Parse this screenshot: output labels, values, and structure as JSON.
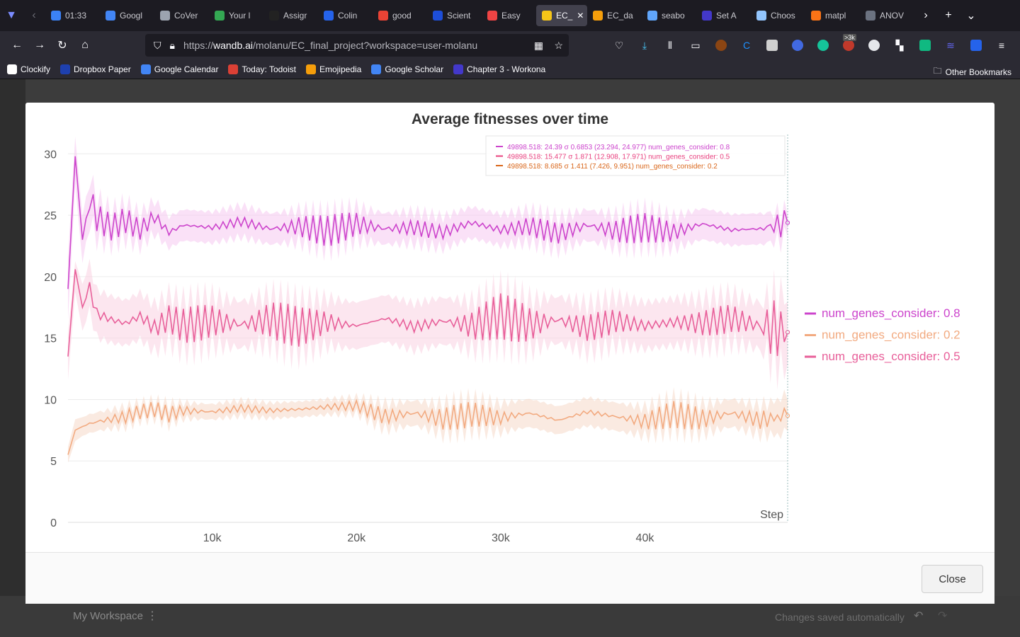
{
  "browser": {
    "tabs": [
      {
        "label": "01:33",
        "color": "#3b82f6"
      },
      {
        "label": "Googl",
        "color": "#4285f4"
      },
      {
        "label": "CoVer",
        "color": "#9ca3af"
      },
      {
        "label": "Your l",
        "color": "#34a853"
      },
      {
        "label": "Assigr",
        "color": "#222222"
      },
      {
        "label": "Colin",
        "color": "#2563eb"
      },
      {
        "label": "good",
        "color": "#ea4335"
      },
      {
        "label": "Scient",
        "color": "#1d4ed8"
      },
      {
        "label": "Easy",
        "color": "#ef4444"
      },
      {
        "label": "EC_",
        "color": "#f5c518",
        "active": true
      },
      {
        "label": "EC_da",
        "color": "#f59e0b"
      },
      {
        "label": "seabo",
        "color": "#60a5fa"
      },
      {
        "label": "Set A",
        "color": "#4338ca"
      },
      {
        "label": "Choos",
        "color": "#93c5fd"
      },
      {
        "label": "matpl",
        "color": "#f97316"
      },
      {
        "label": "ANOV",
        "color": "#6b7280"
      }
    ],
    "url_prefix": "https://",
    "url_domain": "wandb.ai",
    "url_path": "/molanu/EC_final_project?workspace=user-molanu",
    "bookmarks": [
      "Clockify",
      "Dropbox Paper",
      "Google Calendar",
      "Today: Todoist",
      "Emojipedia",
      "Google Scholar",
      "Chapter 3 - Workona"
    ],
    "other_bookmarks": "Other Bookmarks",
    "badge": ">3k"
  },
  "app": {
    "workspace": "My Workspace",
    "saved_status": "Changes saved automatically",
    "close_label": "Close"
  },
  "chart_data": {
    "type": "line",
    "title": "Average fitnesses over time",
    "xlabel": "Step",
    "ylabel": "",
    "xlim": [
      0,
      49898.518
    ],
    "ylim": [
      0,
      31
    ],
    "xticks": [
      "10k",
      "20k",
      "30k",
      "40k"
    ],
    "xtick_values": [
      10000,
      20000,
      30000,
      40000
    ],
    "yticks": [
      0,
      5,
      10,
      15,
      20,
      25,
      30
    ],
    "grid": true,
    "legend_position": "right",
    "legend": [
      {
        "name": "num_genes_consider: 0.8",
        "color": "#cc44cc"
      },
      {
        "name": "num_genes_consider: 0.2",
        "color": "#f2aa80"
      },
      {
        "name": "num_genes_consider: 0.5",
        "color": "#e8609a"
      }
    ],
    "tooltip": [
      {
        "text": "49898.518: 24.39 σ 0.6853 (23.294, 24.977) num_genes_consider: 0.8",
        "color": "#cc44cc"
      },
      {
        "text": "49898.518: 15.477 σ 1.871 (12.908, 17.971) num_genes_consider: 0.5",
        "color": "#e8407e"
      },
      {
        "text": "49898.518: 8.685 σ 1.411 (7.426, 9.951) num_genes_consider: 0.2",
        "color": "#d9661a"
      }
    ],
    "series": [
      {
        "name": "num_genes_consider: 0.8",
        "color": "#cc44cc",
        "band_color": "#f6c9f0",
        "x": [
          0,
          500,
          1000,
          1500,
          2000,
          3000,
          4000,
          5000,
          6000,
          7000,
          8000,
          10000,
          12000,
          14000,
          16000,
          18000,
          20000,
          22000,
          24000,
          26000,
          28000,
          30000,
          32000,
          34000,
          36000,
          38000,
          40000,
          42000,
          44000,
          46000,
          48000,
          49898.518
        ],
        "values": [
          19.0,
          29.8,
          23.0,
          26.5,
          24.8,
          24.0,
          24.6,
          23.8,
          24.9,
          23.6,
          24.2,
          24.0,
          24.5,
          23.9,
          24.1,
          23.7,
          24.3,
          23.9,
          24.0,
          23.6,
          24.4,
          23.8,
          24.1,
          23.5,
          24.2,
          23.7,
          24.0,
          23.6,
          24.3,
          23.8,
          23.9,
          24.39
        ],
        "lower": [
          17.0,
          28.0,
          21.5,
          25.0,
          23.5,
          23.0,
          23.5,
          22.8,
          23.8,
          22.6,
          23.2,
          23.0,
          23.5,
          22.9,
          23.1,
          22.7,
          23.3,
          22.9,
          23.0,
          22.6,
          23.4,
          22.8,
          23.1,
          22.5,
          23.2,
          22.7,
          23.0,
          22.6,
          23.3,
          22.8,
          22.9,
          23.294
        ],
        "upper": [
          21.0,
          31.0,
          24.5,
          27.8,
          26.0,
          25.0,
          25.6,
          24.8,
          25.9,
          24.6,
          25.2,
          25.0,
          25.5,
          24.9,
          25.1,
          24.7,
          25.3,
          24.9,
          25.0,
          24.6,
          25.4,
          24.8,
          25.1,
          24.5,
          25.2,
          24.7,
          25.0,
          24.6,
          25.3,
          24.8,
          24.9,
          24.977
        ]
      },
      {
        "name": "num_genes_consider: 0.5",
        "color": "#e8609a",
        "band_color": "#f9d2e2",
        "x": [
          0,
          500,
          1000,
          1500,
          2000,
          3000,
          4000,
          5000,
          6000,
          7000,
          8000,
          10000,
          12000,
          14000,
          16000,
          18000,
          20000,
          22000,
          24000,
          26000,
          28000,
          30000,
          32000,
          34000,
          36000,
          38000,
          40000,
          42000,
          44000,
          46000,
          48000,
          49898.518
        ],
        "values": [
          13.5,
          20.6,
          17.5,
          19.0,
          17.0,
          16.5,
          16.2,
          16.8,
          15.8,
          16.6,
          16.0,
          16.4,
          16.1,
          16.5,
          15.9,
          16.3,
          16.0,
          16.6,
          15.9,
          16.4,
          16.0,
          16.8,
          16.1,
          16.5,
          15.8,
          16.4,
          16.0,
          16.3,
          16.2,
          16.6,
          16.0,
          15.477
        ],
        "lower": [
          12.0,
          19.0,
          16.0,
          17.5,
          15.5,
          15.0,
          14.8,
          15.3,
          14.3,
          15.1,
          14.5,
          14.9,
          14.6,
          15.0,
          14.4,
          14.8,
          14.5,
          15.1,
          14.4,
          14.9,
          14.5,
          15.3,
          14.6,
          15.0,
          14.3,
          14.9,
          14.5,
          14.8,
          14.7,
          15.1,
          14.5,
          12.908
        ],
        "upper": [
          15.0,
          21.0,
          19.0,
          20.5,
          18.5,
          18.0,
          17.7,
          18.3,
          17.3,
          18.1,
          17.5,
          17.9,
          17.6,
          18.0,
          17.4,
          17.8,
          17.5,
          18.1,
          17.4,
          17.9,
          17.5,
          18.3,
          17.6,
          18.0,
          17.3,
          17.9,
          17.5,
          17.8,
          17.7,
          18.1,
          17.5,
          17.971
        ]
      },
      {
        "name": "num_genes_consider: 0.2",
        "color": "#f2aa80",
        "band_color": "#f5d8c8",
        "x": [
          0,
          500,
          1000,
          1500,
          2000,
          3000,
          4000,
          5000,
          6000,
          7000,
          8000,
          10000,
          12000,
          14000,
          16000,
          18000,
          20000,
          22000,
          24000,
          26000,
          28000,
          30000,
          32000,
          34000,
          36000,
          38000,
          40000,
          42000,
          44000,
          46000,
          48000,
          49898.518
        ],
        "values": [
          5.5,
          7.5,
          7.8,
          8.0,
          8.2,
          8.4,
          8.6,
          9.0,
          9.2,
          8.8,
          9.1,
          9.0,
          9.3,
          9.1,
          9.2,
          9.4,
          9.5,
          8.6,
          8.9,
          8.4,
          8.8,
          8.5,
          8.9,
          8.3,
          9.0,
          8.6,
          8.2,
          8.8,
          8.4,
          8.9,
          8.3,
          8.685
        ],
        "lower": [
          5.0,
          6.8,
          7.2,
          7.4,
          7.6,
          7.8,
          8.0,
          8.5,
          8.7,
          8.2,
          8.6,
          8.5,
          8.8,
          8.6,
          8.7,
          8.9,
          9.0,
          7.8,
          8.1,
          7.5,
          7.9,
          7.6,
          8.0,
          7.4,
          8.1,
          7.7,
          7.3,
          7.9,
          7.5,
          8.0,
          7.4,
          7.426
        ],
        "upper": [
          6.0,
          8.2,
          8.4,
          8.6,
          8.8,
          9.0,
          9.2,
          9.5,
          9.7,
          9.4,
          9.6,
          9.5,
          9.8,
          9.6,
          9.7,
          9.9,
          10.0,
          9.4,
          9.7,
          9.3,
          9.7,
          9.4,
          9.8,
          9.2,
          9.9,
          9.5,
          9.1,
          9.7,
          9.3,
          9.8,
          9.2,
          9.951
        ]
      }
    ]
  }
}
